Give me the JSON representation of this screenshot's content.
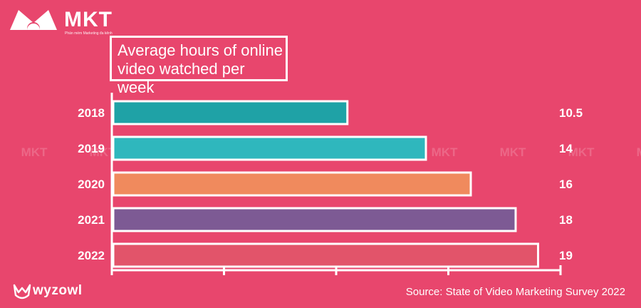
{
  "brand": {
    "name": "MKT",
    "tagline": "Phần mềm Marketing đa kênh",
    "watermark_text": "MKT"
  },
  "footer": {
    "logo_text": "wyzowl",
    "source": "Source: State of Video Marketing Survey 2022"
  },
  "chart_data": {
    "type": "bar",
    "orientation": "horizontal",
    "title": "Average hours of online video watched per week",
    "categories": [
      "2018",
      "2019",
      "2020",
      "2021",
      "2022"
    ],
    "values": [
      10.5,
      14,
      16,
      18,
      19
    ],
    "value_labels": [
      "10.5",
      "14",
      "16",
      "18",
      "19"
    ],
    "colors": [
      "#1fa2a6",
      "#2fb7bd",
      "#f08a5d",
      "#7d5a94",
      "#e2546a"
    ],
    "xlim": [
      0,
      20
    ],
    "xlabel": "",
    "ylabel": "",
    "grid": false,
    "legend": "none"
  }
}
